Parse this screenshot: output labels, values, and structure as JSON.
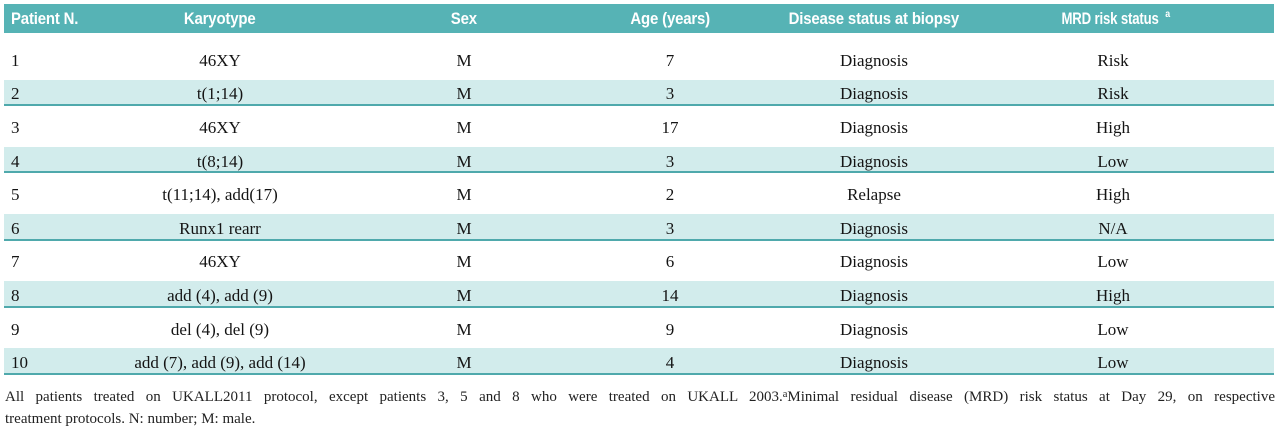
{
  "table": {
    "columns": [
      "Patient N.",
      "Karyotype",
      "Sex",
      "Age (years)",
      "Disease status at biopsy",
      "MRD risk status"
    ],
    "mrd_superscript": "a",
    "rows": [
      {
        "patient": "1",
        "karyotype": "46XY",
        "sex": "M",
        "age": "7",
        "disease_status": "Diagnosis",
        "mrd_risk": "Risk"
      },
      {
        "patient": "2",
        "karyotype": "t(1;14)",
        "sex": "M",
        "age": "3",
        "disease_status": "Diagnosis",
        "mrd_risk": "Risk"
      },
      {
        "patient": "3",
        "karyotype": "46XY",
        "sex": "M",
        "age": "17",
        "disease_status": "Diagnosis",
        "mrd_risk": "High"
      },
      {
        "patient": "4",
        "karyotype": "t(8;14)",
        "sex": "M",
        "age": "3",
        "disease_status": "Diagnosis",
        "mrd_risk": "Low"
      },
      {
        "patient": "5",
        "karyotype": "t(11;14), add(17)",
        "sex": "M",
        "age": "2",
        "disease_status": "Relapse",
        "mrd_risk": "High"
      },
      {
        "patient": "6",
        "karyotype": "Runx1 rearr",
        "sex": "M",
        "age": "3",
        "disease_status": "Diagnosis",
        "mrd_risk": "N/A"
      },
      {
        "patient": "7",
        "karyotype": "46XY",
        "sex": "M",
        "age": "6",
        "disease_status": "Diagnosis",
        "mrd_risk": "Low"
      },
      {
        "patient": "8",
        "karyotype": "add (4), add (9)",
        "sex": "M",
        "age": "14",
        "disease_status": "Diagnosis",
        "mrd_risk": "High"
      },
      {
        "patient": "9",
        "karyotype": "del (4), del (9)",
        "sex": "M",
        "age": "9",
        "disease_status": "Diagnosis",
        "mrd_risk": "Low"
      },
      {
        "patient": "10",
        "karyotype": "add (7), add (9), add (14)",
        "sex": "M",
        "age": "4",
        "disease_status": "Diagnosis",
        "mrd_risk": "Low"
      }
    ]
  },
  "footnote": {
    "line1_before_sup": "All patients treated on UKALL2011 protocol, except patients 3, 5 and 8 who were treated on UKALL 2003.",
    "sup": "a",
    "line1_after_sup": "Minimal residual disease (MRD) risk status at Day 29, on respective",
    "line2": "treatment protocols. N: number; M: male."
  },
  "colors": {
    "header_bg": "#56b3b5",
    "header_text": "#ffffff",
    "row_alt_bg": "#d2ecec",
    "row_line": "#4fa9ac",
    "body_text": "#141414"
  }
}
